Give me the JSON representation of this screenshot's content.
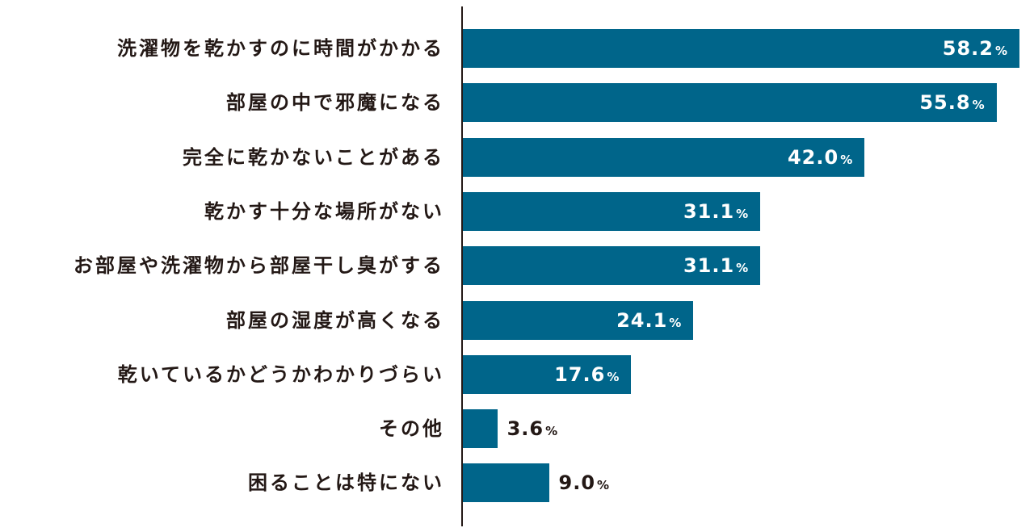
{
  "chart_data": {
    "type": "bar",
    "orientation": "horizontal",
    "categories": [
      "洗濯物を乾かすのに時間がかかる",
      "部屋の中で邪魔になる",
      "完全に乾かないことがある",
      "乾かす十分な場所がない",
      "お部屋や洗濯物から部屋干し臭がする",
      "部屋の湿度が高くなる",
      "乾いているかどうかわかりづらい",
      "その他",
      "困ることは特にない"
    ],
    "values": [
      58.2,
      55.8,
      42.0,
      31.1,
      31.1,
      24.1,
      17.6,
      3.6,
      9.0
    ],
    "value_unit": "%",
    "xlim": [
      0,
      58.2
    ],
    "grid": false,
    "bar_color": "#00658a",
    "label_inside_color": "#ffffff",
    "label_outside_color": "#231815"
  }
}
